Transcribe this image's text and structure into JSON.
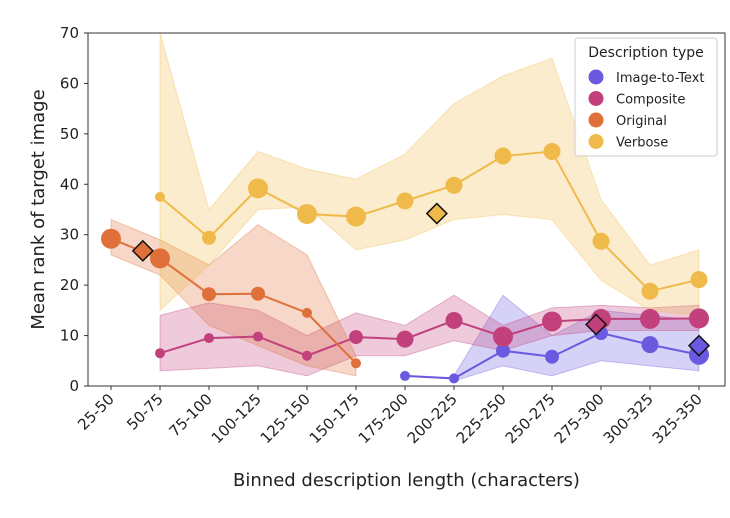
{
  "chart_data": {
    "type": "line",
    "xlabel": "Binned description length (characters)",
    "ylabel": "Mean rank of target image",
    "ylim": [
      0,
      70
    ],
    "yticks": [
      0,
      10,
      20,
      30,
      40,
      50,
      60,
      70
    ],
    "categories": [
      "25-50",
      "50-75",
      "75-100",
      "100-125",
      "125-150",
      "150-175",
      "175-200",
      "200-225",
      "225-250",
      "250-275",
      "275-300",
      "300-325",
      "325-350"
    ],
    "legend": {
      "title": "Description type",
      "placement": "top-right"
    },
    "grid": false,
    "series": [
      {
        "name": "Image-to-Text",
        "color": "#6a5ae0",
        "x": [
          6,
          7,
          8,
          9,
          10,
          11,
          12
        ],
        "y": [
          2.0,
          1.5,
          7.0,
          5.8,
          10.5,
          8.2,
          6.2
        ],
        "marker_size": [
          1,
          1,
          2,
          2,
          2,
          3,
          4
        ],
        "band_x": [
          7,
          8,
          9,
          10,
          11,
          12
        ],
        "band_low": [
          1.0,
          4.0,
          2.0,
          5.0,
          4.0,
          3.0
        ],
        "band_high": [
          2.0,
          18.0,
          10.0,
          15.0,
          14.0,
          13.0
        ],
        "mean_x": 12,
        "mean_y": 8.0
      },
      {
        "name": "Composite",
        "color": "#c2407c",
        "x": [
          1,
          2,
          3,
          4,
          5,
          6,
          7,
          8,
          9,
          10,
          11,
          12
        ],
        "y": [
          6.5,
          9.5,
          9.8,
          6.0,
          9.7,
          9.3,
          13.0,
          9.8,
          12.8,
          13.3,
          13.3,
          13.4
        ],
        "marker_size": [
          1,
          1,
          1,
          1,
          2,
          3,
          3,
          4,
          4,
          4,
          4,
          4
        ],
        "band_x": [
          1,
          2,
          3,
          4,
          5,
          6,
          7,
          8,
          9,
          10,
          11,
          12
        ],
        "band_low": [
          3.0,
          3.5,
          4.0,
          2.0,
          6.0,
          6.0,
          9.0,
          7.0,
          10.0,
          11.0,
          11.0,
          11.0
        ],
        "band_high": [
          14.0,
          16.5,
          15.0,
          10.0,
          14.5,
          12.0,
          18.0,
          12.0,
          15.5,
          16.0,
          15.5,
          16.0
        ],
        "mean_x": 9.9,
        "mean_y": 12.2
      },
      {
        "name": "Original",
        "color": "#e0703a",
        "x": [
          0,
          1,
          2,
          3,
          4,
          5
        ],
        "y": [
          29.2,
          25.3,
          18.2,
          18.3,
          14.5,
          4.5
        ],
        "marker_size": [
          4,
          4,
          2,
          2,
          1,
          1
        ],
        "band_x": [
          0,
          1,
          2,
          3,
          4,
          5
        ],
        "band_low": [
          26.0,
          22.0,
          12.0,
          8.0,
          4.0,
          2.0
        ],
        "band_high": [
          33.0,
          29.0,
          24.0,
          32.0,
          26.0,
          6.0
        ],
        "mean_x": 0.65,
        "mean_y": 26.8
      },
      {
        "name": "Verbose",
        "color": "#f0ba4a",
        "x": [
          1,
          2,
          3,
          4,
          5,
          6,
          7,
          8,
          9,
          10,
          11,
          12
        ],
        "y": [
          37.5,
          29.4,
          39.2,
          34.1,
          33.6,
          36.7,
          39.8,
          45.6,
          46.5,
          28.7,
          18.8,
          21.1
        ],
        "marker_size": [
          1,
          2,
          4,
          4,
          4,
          3,
          3,
          3,
          3,
          3,
          3,
          3
        ],
        "band_x": [
          1,
          2,
          3,
          4,
          5,
          6,
          7,
          8,
          9,
          10,
          11,
          12
        ],
        "band_low": [
          15.0,
          24.0,
          35.0,
          35.5,
          27.0,
          29.0,
          33.0,
          34.0,
          33.0,
          21.0,
          15.0,
          14.0
        ],
        "band_high": [
          70.0,
          35.0,
          46.5,
          43.0,
          41.0,
          46.0,
          56.0,
          61.5,
          65.0,
          37.0,
          24.0,
          27.0
        ],
        "mean_x": 6.65,
        "mean_y": 34.2
      }
    ]
  }
}
